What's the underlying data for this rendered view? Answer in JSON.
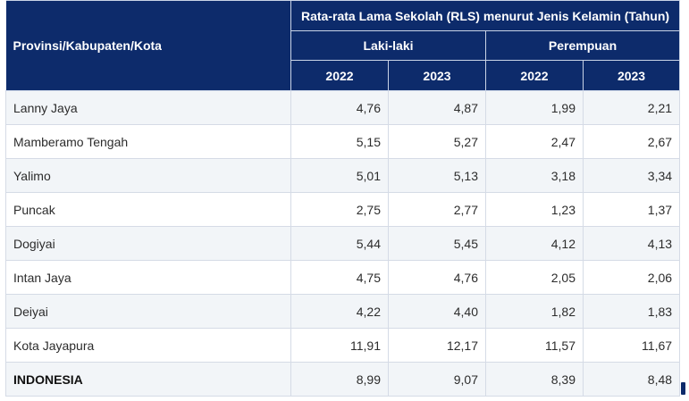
{
  "header": {
    "row_label": "Provinsi/Kabupaten/Kota",
    "main_title": "Rata-rata Lama Sekolah (RLS) menurut Jenis Kelamin (Tahun)",
    "groups": [
      "Laki-laki",
      "Perempuan"
    ],
    "years": [
      "2022",
      "2023",
      "2022",
      "2023"
    ]
  },
  "rows": [
    {
      "name": "Lanny Jaya",
      "values": [
        "4,76",
        "4,87",
        "1,99",
        "2,21"
      ]
    },
    {
      "name": "Mamberamo Tengah",
      "values": [
        "5,15",
        "5,27",
        "2,47",
        "2,67"
      ]
    },
    {
      "name": "Yalimo",
      "values": [
        "5,01",
        "5,13",
        "3,18",
        "3,34"
      ]
    },
    {
      "name": "Puncak",
      "values": [
        "2,75",
        "2,77",
        "1,23",
        "1,37"
      ]
    },
    {
      "name": "Dogiyai",
      "values": [
        "5,44",
        "5,45",
        "4,12",
        "4,13"
      ]
    },
    {
      "name": "Intan Jaya",
      "values": [
        "4,75",
        "4,76",
        "2,05",
        "2,06"
      ]
    },
    {
      "name": "Deiyai",
      "values": [
        "4,22",
        "4,40",
        "1,82",
        "1,83"
      ]
    },
    {
      "name": "Kota Jayapura",
      "values": [
        "11,91",
        "12,17",
        "11,57",
        "11,67"
      ]
    },
    {
      "name": "INDONESIA",
      "values": [
        "8,99",
        "9,07",
        "8,39",
        "8,48"
      ]
    }
  ],
  "colors": {
    "header_bg": "#0d2b6b",
    "row_alt": "#f2f5f8",
    "border": "#d5dbe6"
  }
}
